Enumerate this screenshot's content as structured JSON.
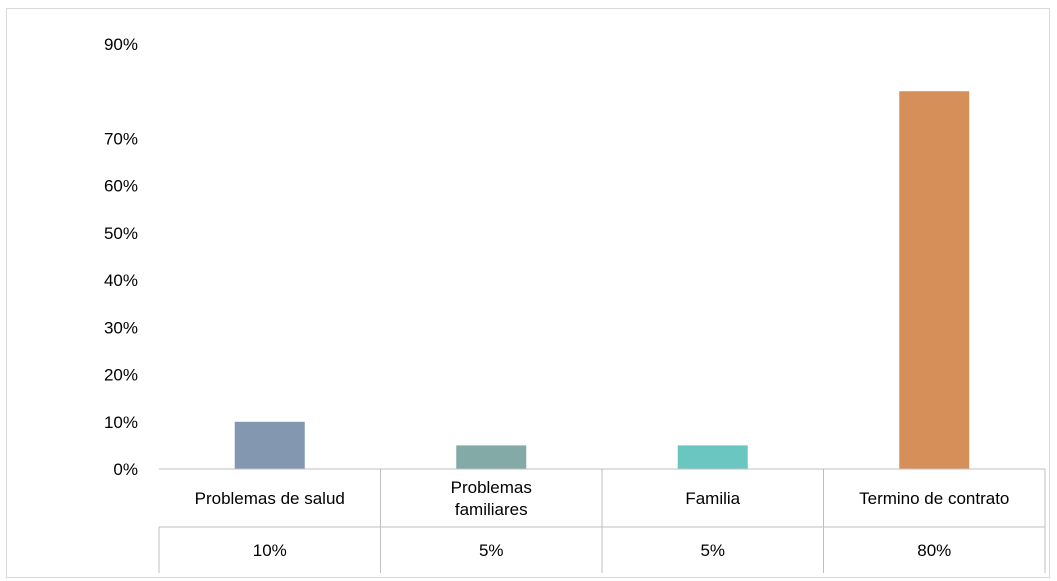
{
  "chart_data": {
    "type": "bar",
    "categories": [
      "Problemas de salud",
      "Problemas familiares",
      "Familia",
      "Termino de contrato"
    ],
    "category_lines": [
      [
        "Problemas de salud"
      ],
      [
        "Problemas",
        "familiares"
      ],
      [
        "Familia"
      ],
      [
        "Termino de contrato"
      ]
    ],
    "values": [
      10,
      5,
      5,
      80
    ],
    "value_labels": [
      "10%",
      "5%",
      "5%",
      "80%"
    ],
    "bar_colors": [
      "#8497b0",
      "#84aaa7",
      "#6ac6c0",
      "#d78f5a"
    ],
    "y_ticks": [
      {
        "value": 0,
        "label": "0%"
      },
      {
        "value": 10,
        "label": "10%"
      },
      {
        "value": 20,
        "label": "20%"
      },
      {
        "value": 30,
        "label": "30%"
      },
      {
        "value": 40,
        "label": "40%"
      },
      {
        "value": 50,
        "label": "50%"
      },
      {
        "value": 60,
        "label": "60%"
      },
      {
        "value": 70,
        "label": "70%"
      },
      {
        "value": 90,
        "label": "90%"
      }
    ],
    "ylim": [
      0,
      90
    ],
    "title": "",
    "xlabel": "",
    "ylabel": "",
    "grid": false,
    "data_table": true
  }
}
